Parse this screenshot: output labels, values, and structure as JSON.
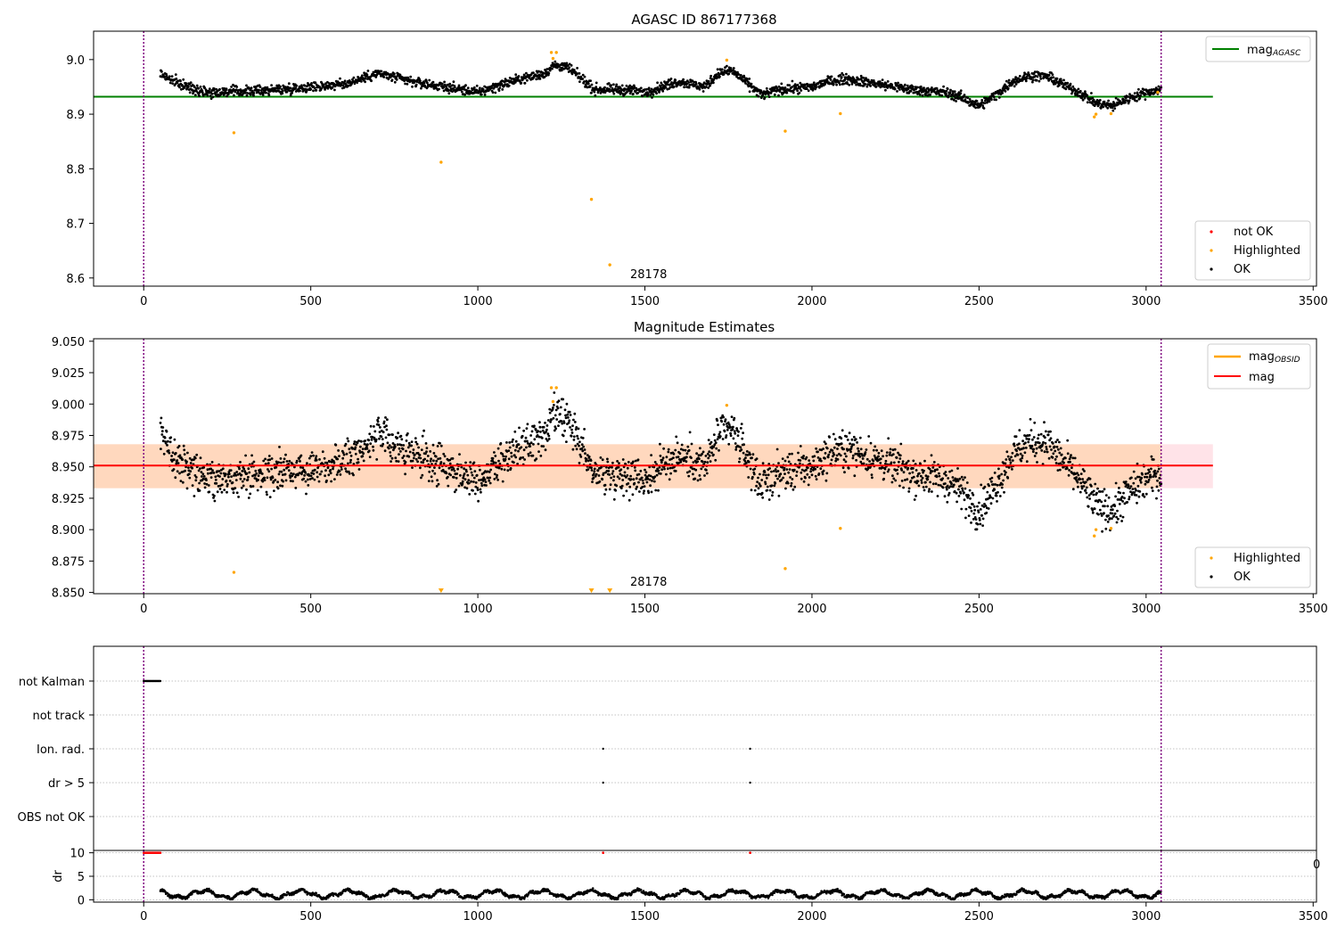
{
  "figure": {
    "background": "#ffffff"
  },
  "chart_data": [
    {
      "type": "scatter",
      "title": "AGASC ID 867177368",
      "xlim": [
        -150,
        3510
      ],
      "ylim": [
        8.585,
        9.052
      ],
      "xticks": [
        0,
        500,
        1000,
        1500,
        2000,
        2500,
        3000,
        3500
      ],
      "yticks": [
        8.6,
        8.7,
        8.8,
        8.9,
        9.0
      ],
      "xtick_labels": [
        "0",
        "500",
        "1000",
        "1500",
        "2000",
        "2500",
        "3000",
        "3500"
      ],
      "ytick_labels": [
        "8.6",
        "8.7",
        "8.8",
        "8.9",
        "9.0"
      ],
      "annotation": {
        "text": "28178",
        "x": 1455,
        "y": 8.59
      },
      "vlines": [
        {
          "x": 0,
          "color": "#800080"
        },
        {
          "x": 3045,
          "color": "#800080"
        }
      ],
      "hline": {
        "name": "mag_AGASC",
        "y": 8.932,
        "x_range": [
          -150,
          3200
        ],
        "color": "#008000"
      },
      "legend_top": {
        "position": "top-right",
        "entries": [
          {
            "label": "mag",
            "sub": "AGASC",
            "color": "#008000"
          }
        ]
      },
      "legend_bottom": {
        "position": "bottom-right",
        "entries": [
          {
            "label": "not OK",
            "color": "#ff0000"
          },
          {
            "label": "Highlighted",
            "color": "#ffa500"
          },
          {
            "label": "OK",
            "color": "#000000"
          }
        ]
      },
      "ok_series": {
        "name": "OK",
        "x_start": 50,
        "x_end": 3045,
        "color": "#000000",
        "trend_x": [
          50,
          90,
          130,
          200,
          300,
          400,
          500,
          600,
          700,
          800,
          900,
          950,
          1000,
          1100,
          1200,
          1230,
          1270,
          1300,
          1350,
          1400,
          1450,
          1500,
          1600,
          1680,
          1720,
          1760,
          1800,
          1850,
          1900,
          2000,
          2050,
          2100,
          2150,
          2200,
          2300,
          2400,
          2450,
          2500,
          2550,
          2600,
          2650,
          2700,
          2750,
          2800,
          2850,
          2900,
          2950,
          3000,
          3045
        ],
        "trend_y": [
          8.975,
          8.96,
          8.95,
          8.94,
          8.942,
          8.945,
          8.95,
          8.955,
          8.975,
          8.96,
          8.95,
          8.945,
          8.94,
          8.96,
          8.975,
          8.99,
          8.985,
          8.97,
          8.945,
          8.945,
          8.945,
          8.94,
          8.96,
          8.95,
          8.975,
          8.98,
          8.96,
          8.935,
          8.945,
          8.95,
          8.96,
          8.965,
          8.96,
          8.955,
          8.945,
          8.94,
          8.93,
          8.915,
          8.935,
          8.96,
          8.97,
          8.97,
          8.955,
          8.94,
          8.92,
          8.915,
          8.93,
          8.94,
          8.945
        ],
        "noise": 0.0075
      },
      "highlighted": {
        "name": "Highlighted",
        "color": "#ffa500",
        "x": [
          270,
          890,
          1220,
          1235,
          1225,
          1340,
          1395,
          1745,
          1920,
          2085,
          2845,
          2850,
          2895,
          3035
        ],
        "y": [
          8.866,
          8.812,
          9.013,
          9.013,
          9.002,
          8.744,
          8.624,
          8.999,
          8.869,
          8.901,
          8.895,
          8.9,
          8.901,
          8.94
        ]
      }
    },
    {
      "type": "scatter",
      "title": "Magnitude Estimates",
      "xlim": [
        -150,
        3510
      ],
      "ylim": [
        8.849,
        9.052
      ],
      "xticks": [
        0,
        500,
        1000,
        1500,
        2000,
        2500,
        3000,
        3500
      ],
      "yticks": [
        8.85,
        8.875,
        8.9,
        8.925,
        8.95,
        8.975,
        9.0,
        9.025,
        9.05
      ],
      "xtick_labels": [
        "0",
        "500",
        "1000",
        "1500",
        "2000",
        "2500",
        "3000",
        "3500"
      ],
      "ytick_labels": [
        "8.850",
        "8.875",
        "8.900",
        "8.925",
        "8.950",
        "8.975",
        "9.000",
        "9.025",
        "9.050"
      ],
      "annotation": {
        "text": "28178",
        "x": 1455,
        "y": 8.853
      },
      "vlines": [
        {
          "x": 0,
          "color": "#800080"
        },
        {
          "x": 3045,
          "color": "#800080"
        }
      ],
      "band_pink": {
        "y": [
          8.933,
          8.968
        ],
        "x_range": [
          -150,
          3200
        ],
        "color": "#ffc0cb"
      },
      "band_obsid": {
        "y": [
          8.933,
          8.968
        ],
        "x_range": [
          -150,
          3045
        ],
        "color": "#ffa500"
      },
      "mag_line": {
        "name": "mag",
        "y": 8.951,
        "x_range": [
          -150,
          3200
        ],
        "color": "#ff0000"
      },
      "legend_top": {
        "position": "top-right",
        "entries": [
          {
            "label": "mag",
            "sub": "OBSID",
            "color": "#ffa500"
          },
          {
            "label": "mag",
            "color": "#ff0000"
          }
        ]
      },
      "legend_bottom": {
        "position": "bottom-right",
        "entries": [
          {
            "label": "Highlighted",
            "color": "#ffa500"
          },
          {
            "label": "OK",
            "color": "#000000"
          }
        ]
      },
      "highlighted": {
        "name": "Highlighted",
        "color": "#ffa500",
        "x": [
          270,
          1220,
          1235,
          1225,
          1745,
          1920,
          2085,
          2845,
          2850,
          2895
        ],
        "y": [
          8.866,
          9.013,
          9.013,
          9.002,
          8.999,
          8.869,
          8.901,
          8.895,
          8.9,
          8.901
        ]
      },
      "off_scale_markers": {
        "color": "#ffa500",
        "x": [
          890,
          1340,
          1395
        ],
        "y": 8.851
      }
    },
    {
      "type": "scatter",
      "title": "",
      "xlim": [
        -150,
        3510
      ],
      "vlines": [
        {
          "x": 0,
          "color": "#800080"
        },
        {
          "x": 3045,
          "color": "#800080"
        }
      ],
      "flag_rows": [
        "not Kalman",
        "not track",
        "Ion. rad.",
        "dr > 5",
        "OBS not OK"
      ],
      "flag_points": [
        {
          "row": "not Kalman",
          "x_start": 0,
          "x_end": 50
        },
        {
          "row": "Ion. rad.",
          "x": [
            1375,
            1815
          ]
        },
        {
          "row": "dr > 5",
          "x": [
            1375,
            1815
          ]
        }
      ]
    },
    {
      "type": "scatter",
      "title": "",
      "ylabel": "dr",
      "xlim": [
        -150,
        3510
      ],
      "ylim": [
        -0.5,
        10.5
      ],
      "xticks": [
        0,
        500,
        1000,
        1500,
        2000,
        2500,
        3000,
        3500
      ],
      "yticks": [
        0,
        5,
        10
      ],
      "xtick_labels": [
        "0",
        "500",
        "1000",
        "1500",
        "2000",
        "2500",
        "3000",
        "3500"
      ],
      "ytick_labels": [
        "0",
        "5",
        "10"
      ],
      "clipped_tick_label": "0",
      "vlines": [
        {
          "x": 0,
          "color": "#800080"
        },
        {
          "x": 3045,
          "color": "#800080"
        }
      ],
      "dr_series": {
        "name": "dr",
        "x_start": 50,
        "x_end": 3045,
        "color": "#000000",
        "min": 0.1,
        "max": 2.7
      },
      "clipped": {
        "color": "#ff0000",
        "y": 10,
        "x_start": 0,
        "x_end": 50,
        "x_extra": [
          1375,
          1815
        ]
      }
    }
  ]
}
